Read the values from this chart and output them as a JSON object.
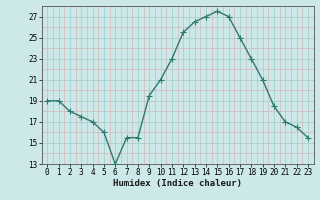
{
  "x": [
    0,
    1,
    2,
    3,
    4,
    5,
    6,
    7,
    8,
    9,
    10,
    11,
    12,
    13,
    14,
    15,
    16,
    17,
    18,
    19,
    20,
    21,
    22,
    23
  ],
  "y": [
    19,
    19,
    18,
    17.5,
    17,
    16,
    13,
    15.5,
    15.5,
    19.5,
    21,
    23,
    25.5,
    26.5,
    27,
    27.5,
    27,
    25,
    23,
    21,
    18.5,
    17,
    16.5,
    15.5
  ],
  "line_color": "#2d7a6e",
  "marker_color": "#2d7a6e",
  "bg_color": "#cce8e8",
  "grid_color_major": "#aacfcf",
  "grid_color_minor": "#d4b8b8",
  "xlabel": "Humidex (Indice chaleur)",
  "ylim": [
    13,
    28
  ],
  "xlim": [
    -0.5,
    23.5
  ],
  "yticks": [
    13,
    15,
    17,
    19,
    21,
    23,
    25,
    27
  ],
  "xticks": [
    0,
    1,
    2,
    3,
    4,
    5,
    6,
    7,
    8,
    9,
    10,
    11,
    12,
    13,
    14,
    15,
    16,
    17,
    18,
    19,
    20,
    21,
    22,
    23
  ],
  "line_width": 1.0,
  "marker_size": 4,
  "marker_ew": 0.8
}
